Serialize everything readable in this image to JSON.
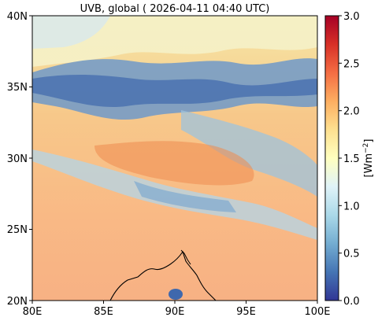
{
  "title": "UVB, global ( 2026-04-11 04:40 UTC)",
  "map": {
    "lon_ticks": [
      "80E",
      "85E",
      "90E",
      "95E",
      "100E"
    ],
    "lat_ticks": [
      "20N",
      "25N",
      "30N",
      "35N",
      "40N"
    ],
    "lon_range": [
      80,
      100
    ],
    "lat_range": [
      20,
      40
    ]
  },
  "colorbar": {
    "label": "[Wm",
    "label_exponent": "−2",
    "label_close": "]",
    "ticks": [
      "0.0",
      "0.5",
      "1.0",
      "1.5",
      "2.0",
      "2.5",
      "3.0"
    ],
    "range": [
      0,
      3
    ],
    "colormap": "RdYlBu_r"
  },
  "colors": {
    "low": "#313695",
    "mid_low": "#74add1",
    "mid": "#ffffbf",
    "mid_high": "#f98e52",
    "high": "#a50026",
    "coastline": "#000000"
  }
}
